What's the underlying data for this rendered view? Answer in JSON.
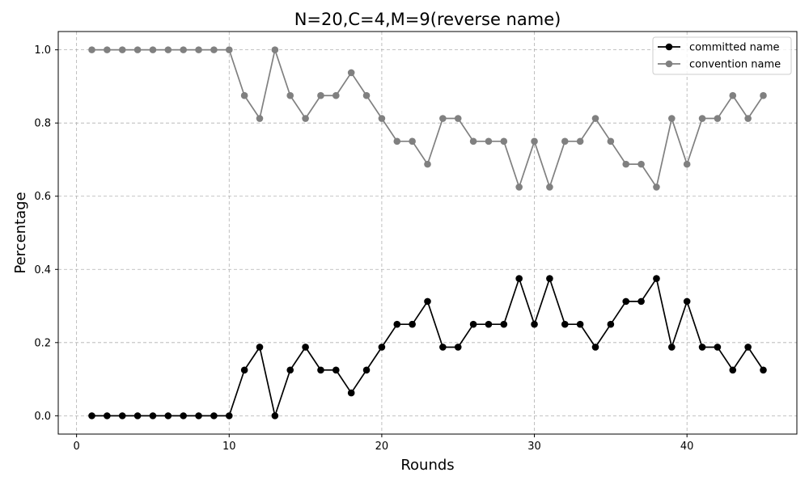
{
  "chart_data": {
    "type": "line",
    "title": "N=20,C=4,M=9(reverse name)",
    "xlabel": "Rounds",
    "ylabel": "Percentage",
    "xlim": [
      -1.2,
      47.2
    ],
    "ylim": [
      -0.05,
      1.05
    ],
    "xticks": [
      0,
      10,
      20,
      30,
      40
    ],
    "yticks": [
      0.0,
      0.2,
      0.4,
      0.6,
      0.8,
      1.0
    ],
    "xtick_labels": [
      "0",
      "10",
      "20",
      "30",
      "40"
    ],
    "ytick_labels": [
      "0.0",
      "0.2",
      "0.4",
      "0.6",
      "0.8",
      "1.0"
    ],
    "grid": true,
    "legend_position": "top-right",
    "x": [
      1,
      2,
      3,
      4,
      5,
      6,
      7,
      8,
      9,
      10,
      11,
      12,
      13,
      14,
      15,
      16,
      17,
      18,
      19,
      20,
      21,
      22,
      23,
      24,
      25,
      26,
      27,
      28,
      29,
      30,
      31,
      32,
      33,
      34,
      35,
      36,
      37,
      38,
      39,
      40,
      41,
      42,
      43,
      44,
      45
    ],
    "series": [
      {
        "name": "committed name",
        "color": "#000000",
        "marker": "circle",
        "values": [
          0,
          0,
          0,
          0,
          0,
          0,
          0,
          0,
          0,
          0,
          0.125,
          0.1875,
          0,
          0.125,
          0.1875,
          0.125,
          0.125,
          0.0625,
          0.125,
          0.1875,
          0.25,
          0.25,
          0.3125,
          0.1875,
          0.1875,
          0.25,
          0.25,
          0.25,
          0.375,
          0.25,
          0.375,
          0.25,
          0.25,
          0.1875,
          0.25,
          0.3125,
          0.3125,
          0.375,
          0.1875,
          0.3125,
          0.1875,
          0.1875,
          0.125,
          0.1875,
          0.125
        ]
      },
      {
        "name": "convention name",
        "color": "#808080",
        "marker": "circle",
        "values": [
          1,
          1,
          1,
          1,
          1,
          1,
          1,
          1,
          1,
          1,
          0.875,
          0.8125,
          1,
          0.875,
          0.8125,
          0.875,
          0.875,
          0.9375,
          0.875,
          0.8125,
          0.75,
          0.75,
          0.6875,
          0.8125,
          0.8125,
          0.75,
          0.75,
          0.75,
          0.625,
          0.75,
          0.625,
          0.75,
          0.75,
          0.8125,
          0.75,
          0.6875,
          0.6875,
          0.625,
          0.8125,
          0.6875,
          0.8125,
          0.8125,
          0.875,
          0.8125,
          0.875
        ]
      }
    ]
  }
}
